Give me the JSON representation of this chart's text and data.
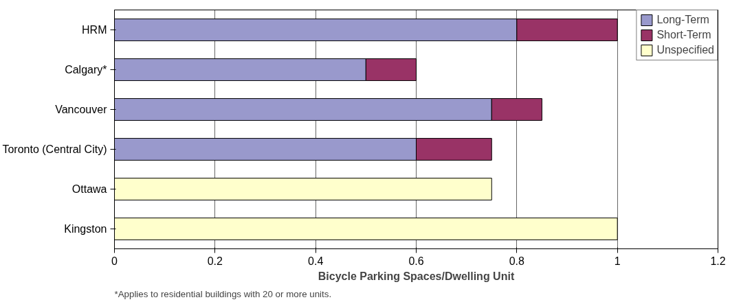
{
  "chart_data": {
    "type": "bar",
    "orientation": "horizontal",
    "stacked": true,
    "categories": [
      "HRM",
      "Calgary*",
      "Vancouver",
      "Toronto (Central City)",
      "Ottawa",
      "Kingston"
    ],
    "series": [
      {
        "name": "Long-Term",
        "color": "#9999cc",
        "values": [
          0.8,
          0.5,
          0.75,
          0.6,
          null,
          null
        ]
      },
      {
        "name": "Short-Term",
        "color": "#993366",
        "values": [
          0.2,
          0.1,
          0.1,
          0.15,
          null,
          null
        ]
      },
      {
        "name": "Unspecified",
        "color": "#ffffcc",
        "values": [
          null,
          null,
          null,
          null,
          0.75,
          1.0
        ]
      }
    ],
    "xlabel": "Bicycle Parking Spaces/Dwelling Unit",
    "xlim": [
      0,
      1.2
    ],
    "xticks": [
      0,
      0.2,
      0.4,
      0.6,
      0.8,
      1,
      1.2
    ],
    "grid": "x",
    "legend": "top right",
    "annotations": [
      "*Applies to residential buildings with 20 or more units."
    ]
  }
}
